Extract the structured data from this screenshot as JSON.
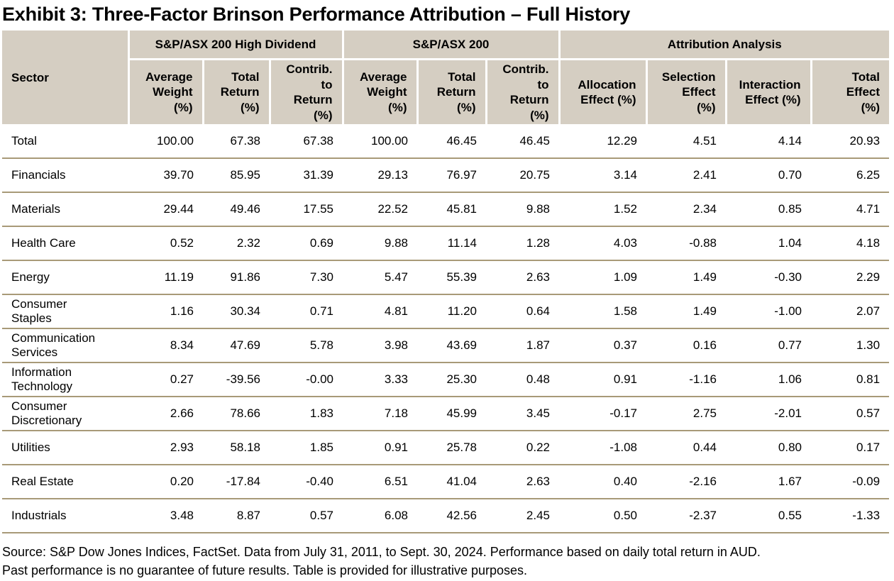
{
  "title": "Exhibit 3: Three-Factor Brinson Performance Attribution – Full History",
  "colors": {
    "header_bg": "#d5cec2",
    "row_line": "#a89a78",
    "separator": "#ffffff",
    "text": "#000000"
  },
  "table": {
    "sector_header": "Sector",
    "groups": [
      {
        "label": "S&P/ASX 200 High Dividend",
        "span": 3
      },
      {
        "label": "S&P/ASX 200",
        "span": 3
      },
      {
        "label": "Attribution Analysis",
        "span": 4
      }
    ],
    "columns": [
      "Average\nWeight\n(%)",
      "Total\nReturn\n(%)",
      "Contrib.\nto\nReturn\n(%)",
      "Average\nWeight\n(%)",
      "Total\nReturn\n(%)",
      "Contrib.\nto\nReturn\n(%)",
      "Allocation\nEffect (%)",
      "Selection\nEffect\n(%)",
      "Interaction\nEffect (%)",
      "Total\nEffect\n(%)"
    ],
    "rows": [
      {
        "sector": "Total",
        "values": [
          "100.00",
          "67.38",
          "67.38",
          "100.00",
          "46.45",
          "46.45",
          "12.29",
          "4.51",
          "4.14",
          "20.93"
        ]
      },
      {
        "sector": "Financials",
        "values": [
          "39.70",
          "85.95",
          "31.39",
          "29.13",
          "76.97",
          "20.75",
          "3.14",
          "2.41",
          "0.70",
          "6.25"
        ]
      },
      {
        "sector": "Materials",
        "values": [
          "29.44",
          "49.46",
          "17.55",
          "22.52",
          "45.81",
          "9.88",
          "1.52",
          "2.34",
          "0.85",
          "4.71"
        ]
      },
      {
        "sector": "Health Care",
        "values": [
          "0.52",
          "2.32",
          "0.69",
          "9.88",
          "11.14",
          "1.28",
          "4.03",
          "-0.88",
          "1.04",
          "4.18"
        ]
      },
      {
        "sector": "Energy",
        "values": [
          "11.19",
          "91.86",
          "7.30",
          "5.47",
          "55.39",
          "2.63",
          "1.09",
          "1.49",
          "-0.30",
          "2.29"
        ]
      },
      {
        "sector": "Consumer\nStaples",
        "values": [
          "1.16",
          "30.34",
          "0.71",
          "4.81",
          "11.20",
          "0.64",
          "1.58",
          "1.49",
          "-1.00",
          "2.07"
        ]
      },
      {
        "sector": "Communication\nServices",
        "values": [
          "8.34",
          "47.69",
          "5.78",
          "3.98",
          "43.69",
          "1.87",
          "0.37",
          "0.16",
          "0.77",
          "1.30"
        ]
      },
      {
        "sector": "Information\nTechnology",
        "values": [
          "0.27",
          "-39.56",
          "-0.00",
          "3.33",
          "25.30",
          "0.48",
          "0.91",
          "-1.16",
          "1.06",
          "0.81"
        ]
      },
      {
        "sector": "Consumer\nDiscretionary",
        "values": [
          "2.66",
          "78.66",
          "1.83",
          "7.18",
          "45.99",
          "3.45",
          "-0.17",
          "2.75",
          "-2.01",
          "0.57"
        ]
      },
      {
        "sector": "Utilities",
        "values": [
          "2.93",
          "58.18",
          "1.85",
          "0.91",
          "25.78",
          "0.22",
          "-1.08",
          "0.44",
          "0.80",
          "0.17"
        ]
      },
      {
        "sector": "Real Estate",
        "values": [
          "0.20",
          "-17.84",
          "-0.40",
          "6.51",
          "41.04",
          "2.63",
          "0.40",
          "-2.16",
          "1.67",
          "-0.09"
        ]
      },
      {
        "sector": "Industrials",
        "values": [
          "3.48",
          "8.87",
          "0.57",
          "6.08",
          "42.56",
          "2.45",
          "0.50",
          "-2.37",
          "0.55",
          "-1.33"
        ]
      }
    ]
  },
  "footnote": "Source: S&P Dow Jones Indices, FactSet. Data from July 31, 2011, to Sept. 30, 2024. Performance based on daily total return in AUD.\nPast performance is no guarantee of future results. Table is provided for illustrative purposes."
}
